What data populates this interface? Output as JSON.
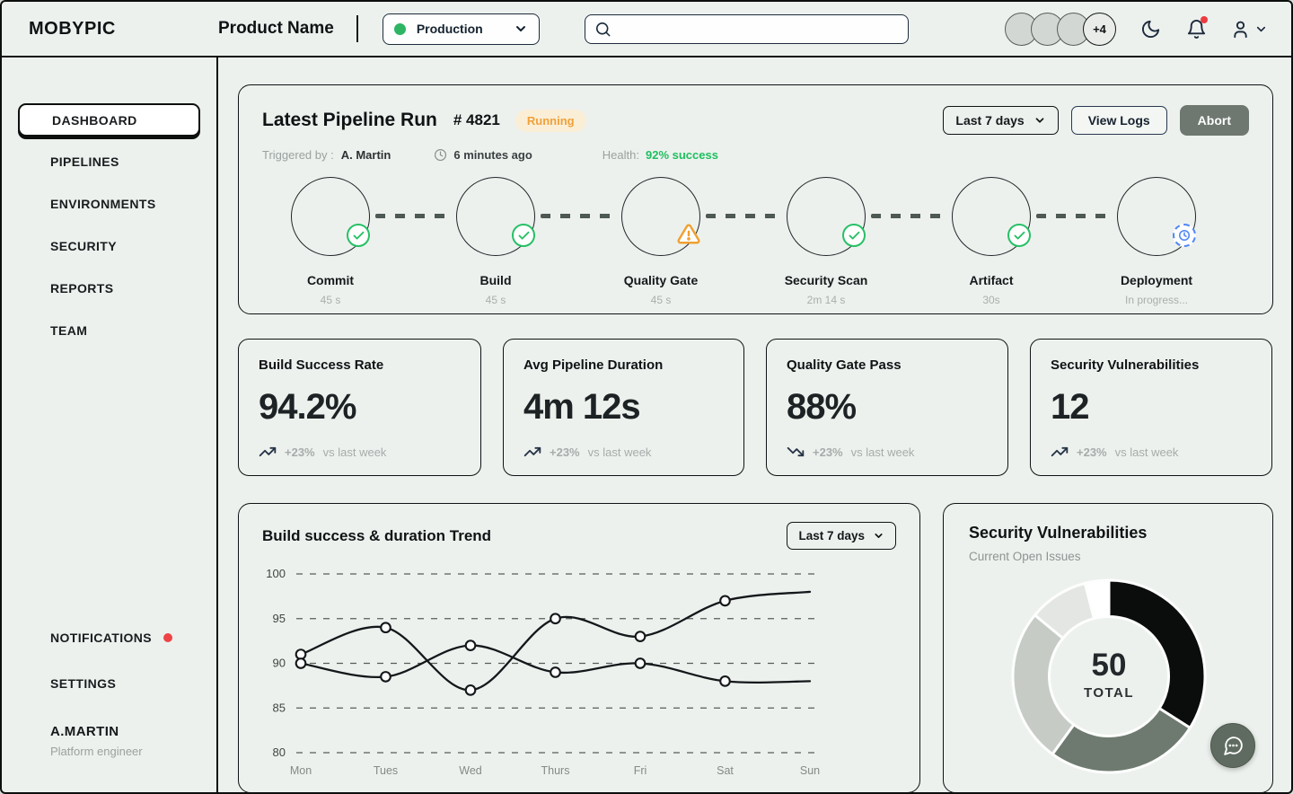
{
  "colors": {
    "background": "#edf1ee",
    "border_dark": "#101314",
    "accent_navy": "#1d2b3c",
    "success_green": "#1fc05f",
    "warning_orange": "#f0a13a",
    "alert_red": "#ee4446",
    "olive_gray": "#6e7870",
    "running_blue": "#4f86f7"
  },
  "header": {
    "logo": "MOBYPIC",
    "product_name": "Product Name",
    "environment": {
      "label": "Production"
    },
    "search": {
      "placeholder": ""
    },
    "avatars": [
      {
        "label": "",
        "type": "avatar"
      },
      {
        "label": "",
        "type": "avatar"
      },
      {
        "label": "",
        "type": "avatar"
      },
      {
        "label": "+4",
        "type": "more"
      }
    ],
    "icons": [
      "dark-mode-moon",
      "notification-bell",
      "user-account",
      "chevron-down"
    ]
  },
  "sidebar": {
    "main_items": [
      {
        "label": "DASHBOARD",
        "active": true
      },
      {
        "label": "PIPELINES"
      },
      {
        "label": "ENVIRONMENTS"
      },
      {
        "label": "SECURITY"
      },
      {
        "label": "REPORTS"
      },
      {
        "label": "TEAM"
      }
    ],
    "bottom_items": [
      {
        "label": "NOTIFICATIONS",
        "has_dot": true
      },
      {
        "label": "SETTINGS"
      }
    ],
    "user": {
      "name": "A.MARTIN",
      "role": "Platform engineer"
    }
  },
  "pipeline": {
    "title": "Latest Pipeline Run",
    "run_number": "# 4821",
    "status_badge": "Running",
    "triggered_by_label": "Triggered by :",
    "triggered_by": "A. Martin",
    "time_ago": "6 minutes ago",
    "health_label": "Health:",
    "health_value": "92% success",
    "range_selector": "Last 7 days",
    "view_logs_label": "View Logs",
    "abort_label": "Abort",
    "stages": [
      {
        "name": "Commit",
        "duration": "45 s",
        "status": "success"
      },
      {
        "name": "Build",
        "duration": "45 s",
        "status": "success"
      },
      {
        "name": "Quality Gate",
        "duration": "45 s",
        "status": "warning"
      },
      {
        "name": "Security Scan",
        "duration": "2m 14 s",
        "status": "success"
      },
      {
        "name": "Artifact",
        "duration": "30s",
        "status": "success"
      },
      {
        "name": "Deployment",
        "duration": "In progress...",
        "status": "running"
      }
    ]
  },
  "metrics": [
    {
      "title": "Build Success Rate",
      "value": "94.2%",
      "delta": "+23%",
      "caption": "vs last week",
      "trend": "up"
    },
    {
      "title": "Avg Pipeline Duration",
      "value": "4m 12s",
      "delta": "+23%",
      "caption": "vs last week",
      "trend": "up"
    },
    {
      "title": "Quality Gate Pass",
      "value": "88%",
      "delta": "+23%",
      "caption": "vs last week",
      "trend": "down"
    },
    {
      "title": "Security Vulnerabilities",
      "value": "12",
      "delta": "+23%",
      "caption": "vs last week",
      "trend": "up"
    }
  ],
  "chart_data": [
    {
      "type": "line",
      "title": "Build success & duration Trend",
      "range_selector": "Last 7 days",
      "categories": [
        "Mon",
        "Tues",
        "Wed",
        "Thurs",
        "Fri",
        "Sat",
        "Sun"
      ],
      "yticks": [
        100,
        95,
        90,
        85,
        80
      ],
      "ylim": [
        80,
        100
      ],
      "grid": "horizontal-dashed",
      "legend": "none",
      "series": [
        {
          "name": "build-success",
          "values": [
            91,
            94,
            87,
            95,
            93,
            97,
            98
          ],
          "markers_at": [
            0,
            1,
            2,
            3,
            4,
            5
          ]
        },
        {
          "name": "duration",
          "values": [
            90,
            88.5,
            92,
            89,
            90,
            88,
            88
          ],
          "markers_at": [
            0,
            1,
            2,
            3,
            4,
            5
          ]
        }
      ]
    },
    {
      "type": "donut",
      "title": "Security Vulnerabilities",
      "subtitle": "Current Open Issues",
      "center_value": "50",
      "center_label": "TOTAL",
      "slices": [
        {
          "value": 17,
          "color": "#0b0c0c"
        },
        {
          "value": 13,
          "color": "#6e7a70"
        },
        {
          "value": 13,
          "color": "#c6cbc6"
        },
        {
          "value": 5,
          "color": "#e4e6e3"
        },
        {
          "value": 2,
          "color": "#ffffff"
        }
      ]
    }
  ]
}
